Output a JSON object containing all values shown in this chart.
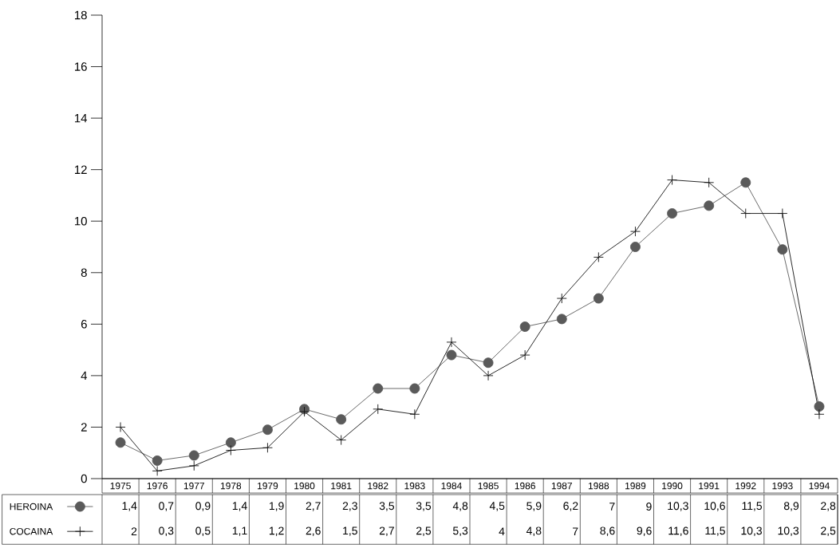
{
  "chart_data": {
    "type": "line",
    "categories": [
      "1975",
      "1976",
      "1977",
      "1978",
      "1979",
      "1980",
      "1981",
      "1982",
      "1983",
      "1984",
      "1985",
      "1986",
      "1987",
      "1988",
      "1989",
      "1990",
      "1991",
      "1992",
      "1993",
      "1994"
    ],
    "series": [
      {
        "name": "HEROINA",
        "color": "#5a5a5a",
        "marker": "circle",
        "values": [
          1.4,
          0.7,
          0.9,
          1.4,
          1.9,
          2.7,
          2.3,
          3.5,
          3.5,
          4.8,
          4.5,
          5.9,
          6.2,
          7,
          9,
          10.3,
          10.6,
          11.5,
          8.9,
          2.8
        ],
        "value_labels": [
          "1,4",
          "0,7",
          "0,9",
          "1,4",
          "1,9",
          "2,7",
          "2,3",
          "3,5",
          "3,5",
          "4,8",
          "4,5",
          "5,9",
          "6,2",
          "7",
          "9",
          "10,3",
          "10,6",
          "11,5",
          "8,9",
          "2,8"
        ]
      },
      {
        "name": "COCAINA",
        "color": "#111111",
        "marker": "cross",
        "values": [
          2,
          0.3,
          0.5,
          1.1,
          1.2,
          2.6,
          1.5,
          2.7,
          2.5,
          5.3,
          4,
          4.8,
          7,
          8.6,
          9.6,
          11.6,
          11.5,
          10.3,
          10.3,
          2.5
        ],
        "value_labels": [
          "2",
          "0,3",
          "0,5",
          "1,1",
          "1,2",
          "2,6",
          "1,5",
          "2,7",
          "2,5",
          "5,3",
          "4",
          "4,8",
          "7",
          "8,6",
          "9,6",
          "11,6",
          "11,5",
          "10,3",
          "10,3",
          "2,5"
        ]
      }
    ],
    "ylim": [
      0,
      18
    ],
    "yticks": [
      0,
      2,
      4,
      6,
      8,
      10,
      12,
      14,
      16,
      18
    ],
    "line_style": "solid",
    "legend": "bottom left"
  }
}
